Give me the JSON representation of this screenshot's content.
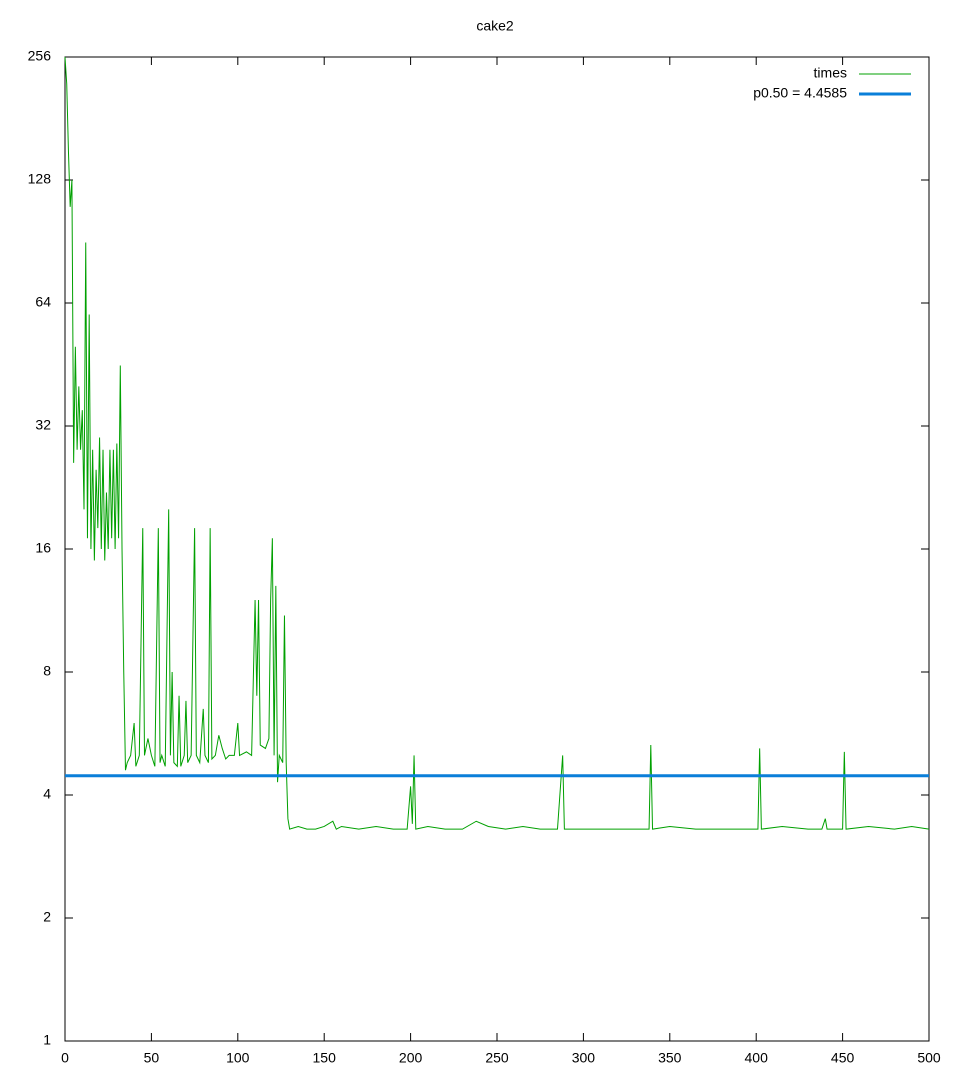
{
  "chart_data": {
    "type": "line",
    "title": "cake2",
    "log_scale_y": 2,
    "xlim": [
      0,
      500
    ],
    "xticks": [
      0,
      50,
      100,
      150,
      200,
      250,
      300,
      350,
      400,
      450,
      500
    ],
    "ylim": [
      1,
      256
    ],
    "yticks": [
      1,
      2,
      4,
      8,
      16,
      32,
      64,
      128,
      256
    ],
    "grid": false,
    "legend": "top-right",
    "series": [
      {
        "name": "times",
        "color": "#00a000",
        "x": [
          0,
          1,
          2,
          3,
          4,
          5,
          6,
          7,
          8,
          9,
          10,
          11,
          12,
          13,
          14,
          15,
          16,
          17,
          18,
          19,
          20,
          21,
          22,
          23,
          24,
          25,
          26,
          27,
          28,
          29,
          30,
          31,
          32,
          33,
          34,
          35,
          36,
          38,
          40,
          41,
          43,
          45,
          46,
          48,
          50,
          52,
          54,
          55,
          56,
          58,
          60,
          61,
          62,
          63,
          65,
          66,
          67,
          69,
          70,
          71,
          73,
          75,
          76,
          78,
          80,
          81,
          83,
          84,
          85,
          87,
          89,
          91,
          93,
          95,
          98,
          100,
          101,
          105,
          108,
          110,
          111,
          112,
          113,
          116,
          118,
          119,
          120,
          121,
          122,
          123,
          124,
          126,
          127,
          128,
          129,
          130,
          135,
          140,
          145,
          150,
          155,
          157,
          160,
          170,
          180,
          190,
          198,
          200,
          201,
          202,
          203,
          210,
          220,
          230,
          238,
          245,
          255,
          265,
          275,
          285,
          288,
          289,
          295,
          310,
          325,
          338,
          339,
          340,
          350,
          365,
          380,
          395,
          401,
          402,
          403,
          415,
          430,
          438,
          440,
          441,
          450,
          451,
          452,
          465,
          480,
          490,
          500
        ],
        "values": [
          256,
          220,
          150,
          110,
          128,
          26,
          50,
          28,
          40,
          28,
          35,
          20,
          90,
          17,
          60,
          16,
          28,
          15,
          25,
          18,
          30,
          16,
          28,
          15,
          22,
          16,
          28,
          17,
          28,
          16,
          29,
          17,
          45,
          16,
          8,
          4.6,
          4.8,
          5,
          6,
          4.7,
          5,
          18,
          5,
          5.5,
          5,
          4.7,
          18,
          4.8,
          5,
          4.7,
          20,
          5,
          8,
          4.8,
          4.7,
          7,
          4.7,
          5,
          6.8,
          4.8,
          5,
          18,
          5,
          4.8,
          6.5,
          5,
          4.8,
          18,
          4.9,
          5,
          5.6,
          5.2,
          4.9,
          5,
          5,
          6,
          5,
          5.1,
          5,
          12,
          7,
          12,
          5.3,
          5.2,
          5.5,
          12,
          17,
          5,
          13,
          4.3,
          5,
          4.8,
          11,
          4.8,
          3.5,
          3.3,
          3.35,
          3.3,
          3.3,
          3.35,
          3.45,
          3.3,
          3.35,
          3.3,
          3.35,
          3.3,
          3.3,
          4.2,
          3.4,
          5,
          3.3,
          3.35,
          3.3,
          3.3,
          3.45,
          3.35,
          3.3,
          3.35,
          3.3,
          3.3,
          5,
          3.3,
          3.3,
          3.3,
          3.3,
          3.3,
          5.3,
          3.3,
          3.35,
          3.3,
          3.3,
          3.3,
          3.3,
          5.2,
          3.3,
          3.35,
          3.3,
          3.3,
          3.5,
          3.3,
          3.3,
          5.1,
          3.3,
          3.35,
          3.3,
          3.35,
          3.3
        ]
      },
      {
        "name": "p0.50 = 4.4585",
        "color": "#0a7fd9",
        "y": 4.4585
      }
    ]
  }
}
